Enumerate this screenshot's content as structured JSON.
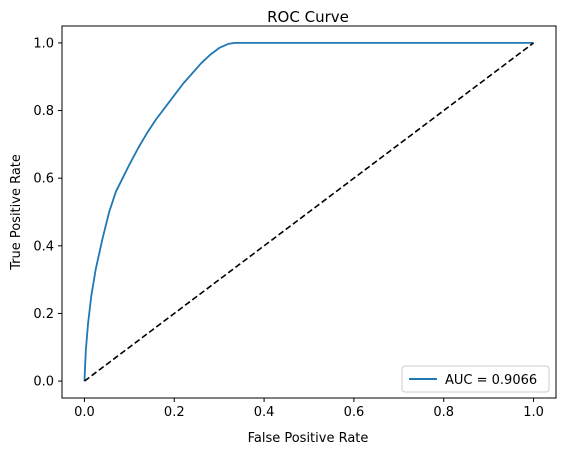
{
  "chart_data": {
    "type": "line",
    "title": "ROC Curve",
    "xlabel": "False Positive Rate",
    "ylabel": "True Positive Rate",
    "xlim": [
      -0.05,
      1.05
    ],
    "ylim": [
      -0.05,
      1.05
    ],
    "xticks": [
      "0.0",
      "0.2",
      "0.4",
      "0.6",
      "0.8",
      "1.0"
    ],
    "yticks": [
      "0.0",
      "0.2",
      "0.4",
      "0.6",
      "0.8",
      "1.0"
    ],
    "grid": false,
    "legend_position": "lower-right",
    "series": [
      {
        "name": "AUC = 0.9066",
        "color": "#1f77b4",
        "style": "solid",
        "x": [
          0.0,
          0.003,
          0.008,
          0.015,
          0.025,
          0.04,
          0.055,
          0.07,
          0.085,
          0.1,
          0.12,
          0.14,
          0.16,
          0.18,
          0.2,
          0.22,
          0.24,
          0.26,
          0.28,
          0.3,
          0.32,
          0.335,
          0.34,
          0.5,
          0.7,
          1.0
        ],
        "y": [
          0.0,
          0.09,
          0.17,
          0.25,
          0.33,
          0.42,
          0.5,
          0.56,
          0.6,
          0.64,
          0.69,
          0.735,
          0.775,
          0.81,
          0.845,
          0.88,
          0.91,
          0.94,
          0.965,
          0.985,
          0.997,
          1.0,
          1.0,
          1.0,
          1.0,
          1.0
        ]
      },
      {
        "name": "",
        "color": "#000000",
        "style": "dashed",
        "x": [
          0.0,
          1.0
        ],
        "y": [
          0.0,
          1.0
        ]
      }
    ]
  }
}
